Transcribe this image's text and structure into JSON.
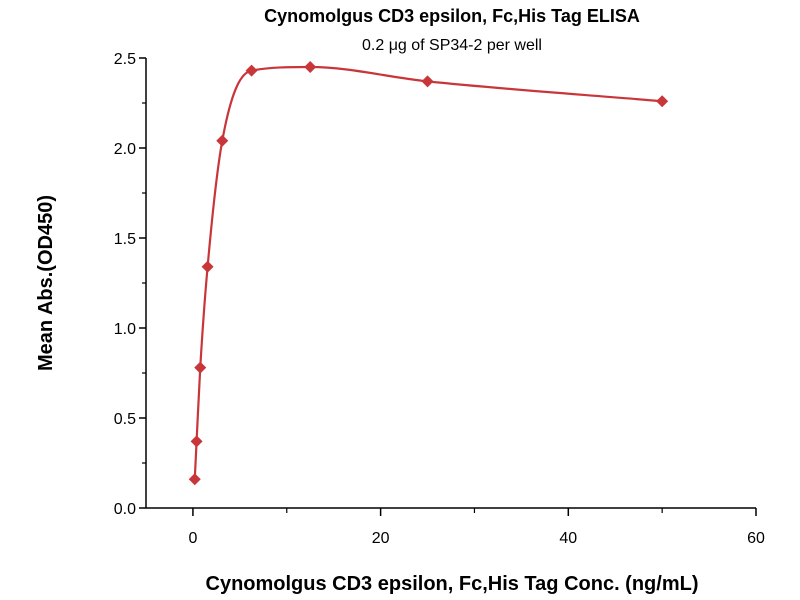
{
  "chart_data": {
    "type": "scatter",
    "title": "Cynomolgus CD3 epsilon, Fc,His Tag ELISA",
    "subtitle": "0.2 μg of SP34-2 per well",
    "xlabel": "Cynomolgus CD3 epsilon, Fc,His Tag Conc. (ng/mL)",
    "ylabel": "Mean Abs.(OD450)",
    "xlim": [
      -5,
      60
    ],
    "ylim": [
      0,
      2.5
    ],
    "xticks": [
      "0",
      "20",
      "40",
      "60"
    ],
    "yticks": [
      "0.0",
      "0.5",
      "1.0",
      "1.5",
      "2.0",
      "2.5"
    ],
    "grid": false,
    "color": "#c8363a",
    "marker": "diamond",
    "fit_curve": true,
    "x": [
      0.195,
      0.391,
      0.781,
      1.563,
      3.125,
      6.25,
      12.5,
      25,
      50
    ],
    "y": [
      0.16,
      0.37,
      0.78,
      1.34,
      2.04,
      2.43,
      2.45,
      2.37,
      2.26
    ]
  }
}
